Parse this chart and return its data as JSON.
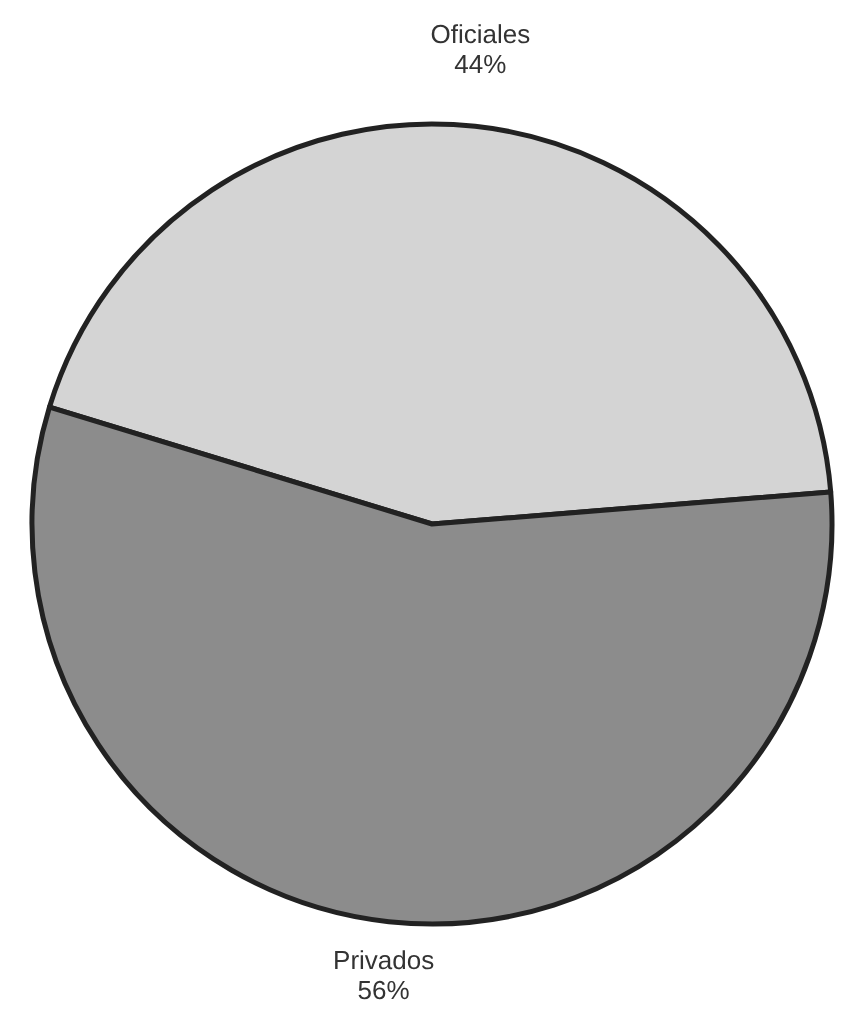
{
  "chart_data": {
    "type": "pie",
    "categories": [
      "Oficiales",
      "Privados"
    ],
    "values": [
      44,
      56
    ],
    "colors": [
      "#d4d4d4",
      "#8c8c8c"
    ],
    "value_labels": [
      "44%",
      "56%"
    ]
  }
}
